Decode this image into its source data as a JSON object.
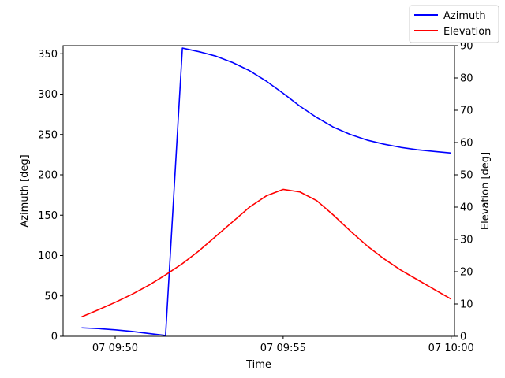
{
  "chart_data": {
    "type": "line",
    "xlabel": "Time",
    "ylabel_left": "Azimuth [deg]",
    "ylabel_right": "Elevation [deg]",
    "x_tick_labels": [
      "07 09:50",
      "07 09:55",
      "07 10:00"
    ],
    "x_tick_minutes": [
      0,
      5,
      10
    ],
    "xlim_minutes": [
      -1.55,
      10.1
    ],
    "ylim_left": [
      0,
      360
    ],
    "ylim_right": [
      0,
      90
    ],
    "yticks_left": [
      0,
      50,
      100,
      150,
      200,
      250,
      300,
      350
    ],
    "yticks_right": [
      0,
      10,
      20,
      30,
      40,
      50,
      60,
      70,
      80,
      90
    ],
    "grid": false,
    "legend_position": "top-right",
    "x_minutes": [
      -1,
      -0.5,
      0,
      0.5,
      1,
      1.5,
      2,
      2.5,
      3,
      3.5,
      4,
      4.5,
      5,
      5.5,
      6,
      6.5,
      7,
      7.5,
      8,
      8.5,
      9,
      9.5,
      10
    ],
    "series": [
      {
        "name": "Azimuth",
        "axis": "left",
        "color": "#0000ff",
        "values": [
          10.5,
          9.5,
          8,
          6,
          3.5,
          1,
          357,
          352.5,
          347,
          339,
          329,
          316,
          301,
          285,
          271,
          259,
          250,
          243,
          238,
          234,
          231,
          229,
          227
        ]
      },
      {
        "name": "Elevation",
        "axis": "right",
        "color": "#ff0000",
        "values": [
          6,
          8.2,
          10.5,
          13,
          15.8,
          19,
          22.5,
          26.5,
          31,
          35.5,
          40,
          43.5,
          45.5,
          44.7,
          42,
          37.5,
          32.6,
          28,
          24,
          20.5,
          17.5,
          14.5,
          11.5
        ]
      }
    ]
  }
}
